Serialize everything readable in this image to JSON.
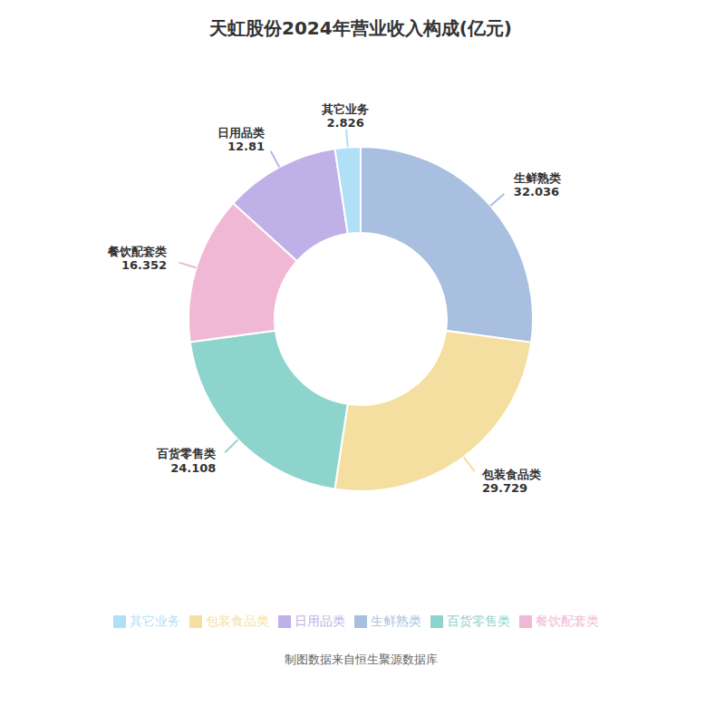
{
  "chart_data": {
    "type": "donut",
    "title": "天虹股份2024年营业收入构成(亿元)",
    "categories": [
      "生鲜熟类",
      "包装食品类",
      "百货零售类",
      "餐饮配套类",
      "日用品类",
      "其它业务"
    ],
    "values": [
      32.036,
      29.729,
      24.108,
      16.352,
      12.81,
      2.826
    ],
    "colors": [
      "#a8bfe0",
      "#f5dfa0",
      "#8dd4cc",
      "#f0b8d4",
      "#c0b0e8",
      "#b0e0f8"
    ],
    "data_labels": true,
    "legend": "bottom",
    "annotations": [
      "制图数据来自恒生聚源数据库"
    ]
  }
}
